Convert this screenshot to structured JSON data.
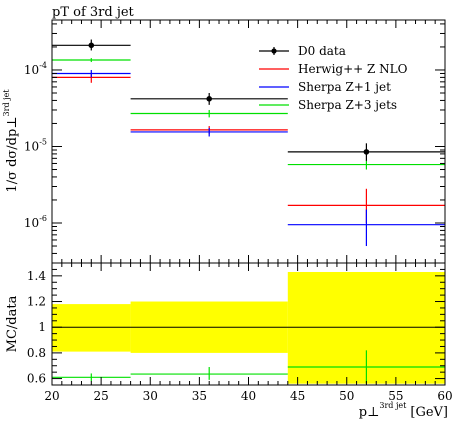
{
  "chart_data": [
    {
      "type": "scatter",
      "title": "pT of 3rd jet",
      "ylabel": "1/σ dσ/dp⊥",
      "ylabel_sup": "3rd jet",
      "yscale": "log",
      "xlim": [
        20,
        60
      ],
      "ylim": [
        3e-07,
        0.00045
      ],
      "y_ticks": [
        {
          "base": "10",
          "exp": "-6",
          "value": 1e-06
        },
        {
          "base": "10",
          "exp": "-5",
          "value": 1e-05
        },
        {
          "base": "10",
          "exp": "-4",
          "value": 0.0001
        }
      ],
      "grid": false,
      "legend_position": "top-right",
      "series": [
        {
          "name": "D0 data",
          "color": "#000000",
          "marker": "dot",
          "points": [
            {
              "x": 24,
              "xlo": 20,
              "xhi": 28,
              "y": 0.00021,
              "ylo": 0.00018,
              "yhi": 0.00025
            },
            {
              "x": 36,
              "xlo": 28,
              "xhi": 44,
              "y": 4.2e-05,
              "ylo": 3.5e-05,
              "yhi": 5e-05
            },
            {
              "x": 52,
              "xlo": 44,
              "xhi": 60,
              "y": 8.5e-06,
              "ylo": 6.5e-06,
              "yhi": 1.1e-05
            }
          ]
        },
        {
          "name": "Herwig++ Z NLO",
          "color": "#ff0000",
          "marker": "none",
          "points": [
            {
              "x": 24,
              "xlo": 20,
              "xhi": 28,
              "y": 8e-05,
              "ylo": 6.8e-05,
              "yhi": 9.2e-05
            },
            {
              "x": 36,
              "xlo": 28,
              "xhi": 44,
              "y": 1.65e-05,
              "ylo": 1.45e-05,
              "yhi": 1.85e-05
            },
            {
              "x": 52,
              "xlo": 44,
              "xhi": 60,
              "y": 1.7e-06,
              "ylo": 1e-06,
              "yhi": 2.8e-06
            }
          ]
        },
        {
          "name": "Sherpa Z+1 jet",
          "color": "#0000ff",
          "marker": "none",
          "points": [
            {
              "x": 24,
              "xlo": 20,
              "xhi": 28,
              "y": 9e-05,
              "ylo": 8e-05,
              "yhi": 0.0001
            },
            {
              "x": 36,
              "xlo": 28,
              "xhi": 44,
              "y": 1.55e-05,
              "ylo": 1.35e-05,
              "yhi": 1.75e-05
            },
            {
              "x": 52,
              "xlo": 44,
              "xhi": 60,
              "y": 9.5e-07,
              "ylo": 5e-07,
              "yhi": 1.5e-06
            }
          ]
        },
        {
          "name": "Sherpa Z+3 jets",
          "color": "#00e000",
          "marker": "none",
          "points": [
            {
              "x": 24,
              "xlo": 20,
              "xhi": 28,
              "y": 0.000135,
              "ylo": 0.000127,
              "yhi": 0.000143
            },
            {
              "x": 36,
              "xlo": 28,
              "xhi": 44,
              "y": 2.7e-05,
              "ylo": 2.4e-05,
              "yhi": 3e-05
            },
            {
              "x": 52,
              "xlo": 44,
              "xhi": 60,
              "y": 5.8e-06,
              "ylo": 5e-06,
              "yhi": 6.6e-06
            }
          ]
        }
      ]
    },
    {
      "type": "scatter",
      "ylabel": "MC/data",
      "xlabel": "p⊥",
      "xlabel_sup": "3rd jet",
      "xlabel_unit": "[GeV]",
      "xlim": [
        20,
        60
      ],
      "ylim": [
        0.55,
        1.5
      ],
      "x_ticks": [
        20,
        25,
        30,
        35,
        40,
        45,
        50,
        55,
        60
      ],
      "y_ticks": [
        0.6,
        0.8,
        1,
        1.2,
        1.4
      ],
      "reference_line": 1.0,
      "band_color": "#ffff00",
      "data_uncertainty_band": [
        {
          "xlo": 20,
          "xhi": 28,
          "lo": 0.81,
          "hi": 1.18
        },
        {
          "xlo": 28,
          "xhi": 44,
          "lo": 0.8,
          "hi": 1.2
        },
        {
          "xlo": 44,
          "xhi": 60,
          "lo": 0.56,
          "hi": 1.43
        }
      ],
      "series": [
        {
          "name": "Sherpa Z+3 jets",
          "color": "#00e000",
          "points": [
            {
              "x": 24,
              "xlo": 20,
              "xhi": 28,
              "y": 0.61,
              "ylo": 0.58,
              "yhi": 0.64
            },
            {
              "x": 36,
              "xlo": 28,
              "xhi": 44,
              "y": 0.635,
              "ylo": 0.59,
              "yhi": 0.69
            },
            {
              "x": 52,
              "xlo": 44,
              "xhi": 60,
              "y": 0.69,
              "ylo": 0.56,
              "yhi": 0.82
            }
          ]
        }
      ]
    }
  ]
}
